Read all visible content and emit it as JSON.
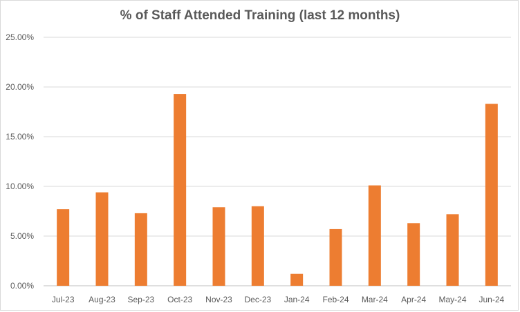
{
  "chart_data": {
    "type": "bar",
    "title": "% of Staff Attended Training (last 12 months)",
    "xlabel": "",
    "ylabel": "",
    "categories": [
      "Jul-23",
      "Aug-23",
      "Sep-23",
      "Oct-23",
      "Nov-23",
      "Dec-23",
      "Jan-24",
      "Feb-24",
      "Mar-24",
      "Apr-24",
      "May-24",
      "Jun-24"
    ],
    "values": [
      7.7,
      9.4,
      7.3,
      19.3,
      7.9,
      8.0,
      1.2,
      5.7,
      10.1,
      6.3,
      7.2,
      18.3
    ],
    "ylim": [
      0,
      25
    ],
    "yticks": [
      0,
      5,
      10,
      15,
      20,
      25
    ],
    "ytick_labels": [
      "0.00%",
      "5.00%",
      "10.00%",
      "15.00%",
      "20.00%",
      "25.00%"
    ],
    "grid": true,
    "legend": "none",
    "bar_color": "#ED7D31"
  }
}
